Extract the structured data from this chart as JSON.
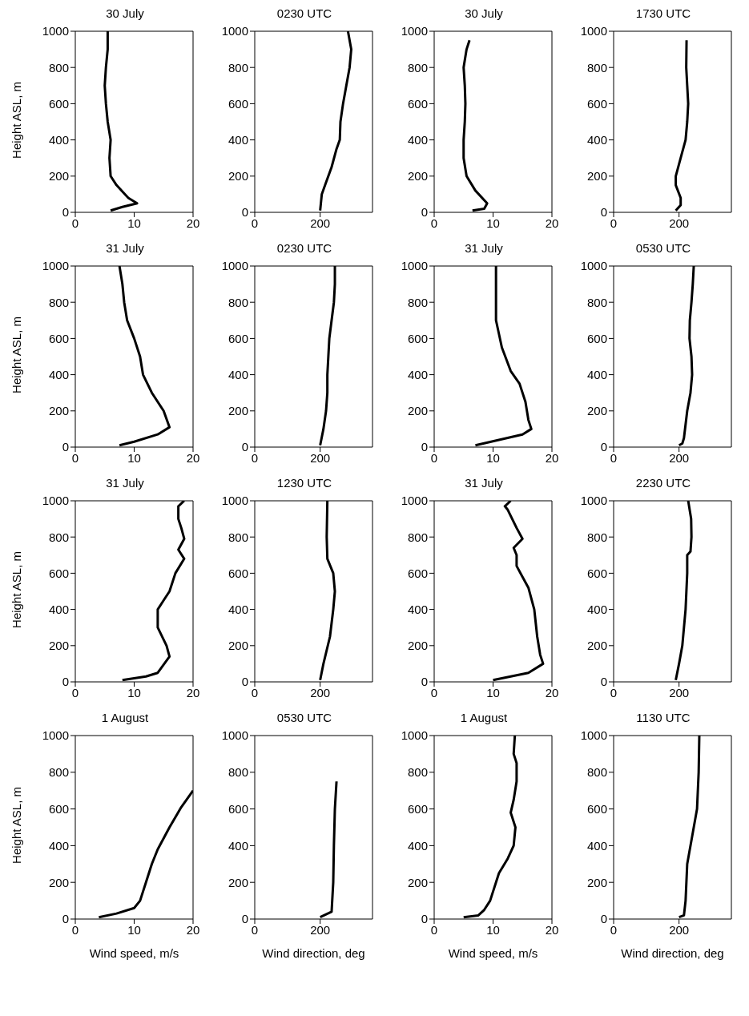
{
  "chart_data": [
    {
      "type": "line",
      "title": "30 July",
      "ylabel": "Height ASL, m",
      "color": "#000000",
      "xlim": [
        0,
        20
      ],
      "xticks": [
        0,
        10,
        20
      ],
      "ylim": [
        0,
        1000
      ],
      "yticks": [
        0,
        200,
        400,
        600,
        800,
        1000
      ],
      "x": [
        6,
        8,
        10.5,
        9,
        7,
        6,
        5.8,
        6,
        5.5,
        5.2,
        5,
        5.2,
        5.5,
        5.5
      ],
      "values": [
        10,
        30,
        50,
        80,
        150,
        200,
        300,
        400,
        500,
        600,
        700,
        800,
        900,
        1000
      ]
    },
    {
      "type": "line",
      "title": "0230 UTC",
      "color": "#000000",
      "xlim": [
        0,
        360
      ],
      "xticks": [
        0,
        200
      ],
      "ylim": [
        0,
        1000
      ],
      "yticks": [
        0,
        200,
        400,
        600,
        800,
        1000
      ],
      "x": [
        200,
        205,
        215,
        235,
        250,
        260,
        262,
        270,
        280,
        290,
        295,
        285
      ],
      "values": [
        10,
        100,
        150,
        250,
        350,
        400,
        500,
        600,
        700,
        800,
        900,
        1000
      ]
    },
    {
      "type": "line",
      "title": "30 July",
      "color": "#000000",
      "xlim": [
        0,
        20
      ],
      "xticks": [
        0,
        10,
        20
      ],
      "ylim": [
        0,
        1000
      ],
      "yticks": [
        0,
        200,
        400,
        600,
        800,
        1000
      ],
      "x": [
        6.5,
        8.5,
        9,
        7,
        5.5,
        5,
        5,
        5.2,
        5.3,
        5.2,
        5,
        5.5,
        6
      ],
      "values": [
        10,
        20,
        50,
        120,
        200,
        300,
        400,
        500,
        600,
        700,
        800,
        900,
        950
      ]
    },
    {
      "type": "line",
      "title": "1730 UTC",
      "color": "#000000",
      "xlim": [
        0,
        360
      ],
      "xticks": [
        0,
        200
      ],
      "ylim": [
        0,
        1000
      ],
      "yticks": [
        0,
        200,
        400,
        600,
        800,
        1000
      ],
      "x": [
        190,
        205,
        205,
        190,
        190,
        205,
        220,
        225,
        228,
        225,
        222,
        223
      ],
      "values": [
        10,
        40,
        80,
        150,
        200,
        300,
        400,
        500,
        600,
        700,
        800,
        950
      ]
    },
    {
      "type": "line",
      "title": "31 July",
      "ylabel": "Height ASL, m",
      "color": "#000000",
      "xlim": [
        0,
        20
      ],
      "xticks": [
        0,
        10,
        20
      ],
      "ylim": [
        0,
        1000
      ],
      "yticks": [
        0,
        200,
        400,
        600,
        800,
        1000
      ],
      "x": [
        7.5,
        10,
        14,
        16,
        15,
        13,
        11.5,
        11,
        10,
        8.8,
        8.3,
        8,
        7.5
      ],
      "values": [
        10,
        30,
        70,
        110,
        200,
        300,
        400,
        500,
        600,
        700,
        800,
        900,
        1000
      ]
    },
    {
      "type": "line",
      "title": "0230 UTC",
      "color": "#000000",
      "xlim": [
        0,
        360
      ],
      "xticks": [
        0,
        200
      ],
      "ylim": [
        0,
        1000
      ],
      "yticks": [
        0,
        200,
        400,
        600,
        800,
        1000
      ],
      "x": [
        200,
        210,
        218,
        222,
        222,
        225,
        228,
        235,
        242,
        245,
        245
      ],
      "values": [
        10,
        100,
        200,
        300,
        400,
        500,
        600,
        700,
        800,
        900,
        1000
      ]
    },
    {
      "type": "line",
      "title": "31 July",
      "color": "#000000",
      "xlim": [
        0,
        20
      ],
      "xticks": [
        0,
        10,
        20
      ],
      "ylim": [
        0,
        1000
      ],
      "yticks": [
        0,
        200,
        400,
        600,
        800,
        1000
      ],
      "x": [
        7,
        11,
        15,
        16.5,
        16,
        15.5,
        14.5,
        13,
        11.5,
        10.5,
        10.5,
        10.5
      ],
      "values": [
        10,
        40,
        70,
        100,
        150,
        250,
        350,
        420,
        550,
        700,
        800,
        1000
      ]
    },
    {
      "type": "line",
      "title": "0530 UTC",
      "color": "#000000",
      "xlim": [
        0,
        360
      ],
      "xticks": [
        0,
        200
      ],
      "ylim": [
        0,
        1000
      ],
      "yticks": [
        0,
        200,
        400,
        600,
        800,
        1000
      ],
      "x": [
        200,
        210,
        215,
        225,
        235,
        240,
        238,
        232,
        233,
        238,
        242,
        245
      ],
      "values": [
        10,
        20,
        50,
        200,
        300,
        400,
        500,
        600,
        700,
        800,
        900,
        1000
      ]
    },
    {
      "type": "line",
      "title": "31 July",
      "ylabel": "Height ASL, m",
      "color": "#000000",
      "xlim": [
        0,
        20
      ],
      "xticks": [
        0,
        10,
        20
      ],
      "ylim": [
        0,
        1000
      ],
      "yticks": [
        0,
        200,
        400,
        600,
        800,
        1000
      ],
      "x": [
        8,
        12,
        14,
        16,
        15.5,
        14,
        14,
        15,
        16,
        17,
        18.5,
        17.5,
        18.5,
        18,
        17.5,
        17.5,
        18.5
      ],
      "values": [
        10,
        30,
        50,
        140,
        200,
        300,
        400,
        450,
        500,
        600,
        680,
        730,
        790,
        850,
        900,
        970,
        1000
      ]
    },
    {
      "type": "line",
      "title": "1230 UTC",
      "color": "#000000",
      "xlim": [
        0,
        360
      ],
      "xticks": [
        0,
        200
      ],
      "ylim": [
        0,
        1000
      ],
      "yticks": [
        0,
        200,
        400,
        600,
        800,
        1000
      ],
      "x": [
        200,
        210,
        230,
        240,
        245,
        240,
        222,
        220,
        222
      ],
      "values": [
        10,
        100,
        250,
        400,
        500,
        600,
        680,
        800,
        1000
      ]
    },
    {
      "type": "line",
      "title": "31 July",
      "color": "#000000",
      "xlim": [
        0,
        20
      ],
      "xticks": [
        0,
        10,
        20
      ],
      "ylim": [
        0,
        1000
      ],
      "yticks": [
        0,
        200,
        400,
        600,
        800,
        1000
      ],
      "x": [
        10,
        13,
        16,
        18.5,
        18,
        17.5,
        17,
        16,
        15,
        14,
        14,
        13.5,
        15,
        14,
        12.5,
        12,
        13
      ],
      "values": [
        10,
        30,
        50,
        100,
        150,
        250,
        400,
        520,
        580,
        640,
        700,
        740,
        790,
        850,
        950,
        970,
        1000
      ]
    },
    {
      "type": "line",
      "title": "2230 UTC",
      "color": "#000000",
      "xlim": [
        0,
        360
      ],
      "xticks": [
        0,
        200
      ],
      "ylim": [
        0,
        1000
      ],
      "yticks": [
        0,
        200,
        400,
        600,
        800,
        1000
      ],
      "x": [
        190,
        200,
        210,
        220,
        225,
        225,
        235,
        238,
        237,
        228
      ],
      "values": [
        10,
        100,
        200,
        400,
        600,
        700,
        720,
        800,
        900,
        1000
      ]
    },
    {
      "type": "line",
      "title": "1 August",
      "ylabel": "Height ASL, m",
      "xlabel": "Wind speed, m/s",
      "color": "#000000",
      "xlim": [
        0,
        20
      ],
      "xticks": [
        0,
        10,
        20
      ],
      "ylim": [
        0,
        1000
      ],
      "yticks": [
        0,
        200,
        400,
        600,
        800,
        1000
      ],
      "x": [
        4,
        7,
        10,
        11,
        12,
        13,
        14,
        16,
        18,
        20
      ],
      "values": [
        10,
        30,
        60,
        100,
        200,
        300,
        380,
        500,
        610,
        700
      ]
    },
    {
      "type": "line",
      "title": "0530 UTC",
      "xlabel": "Wind direction, deg",
      "color": "#000000",
      "xlim": [
        0,
        360
      ],
      "xticks": [
        0,
        200
      ],
      "ylim": [
        0,
        1000
      ],
      "yticks": [
        0,
        200,
        400,
        600,
        800,
        1000
      ],
      "x": [
        200,
        235,
        240,
        242,
        245,
        250
      ],
      "values": [
        10,
        40,
        200,
        400,
        600,
        750
      ]
    },
    {
      "type": "line",
      "title": "1 August",
      "xlabel": "Wind speed, m/s",
      "color": "#000000",
      "xlim": [
        0,
        20
      ],
      "xticks": [
        0,
        10,
        20
      ],
      "ylim": [
        0,
        1000
      ],
      "yticks": [
        0,
        200,
        400,
        600,
        800,
        1000
      ],
      "x": [
        5,
        7.5,
        8.5,
        9.5,
        11,
        12.5,
        13.5,
        13.8,
        13,
        13.5,
        14,
        14,
        13.5,
        13.7
      ],
      "values": [
        10,
        20,
        50,
        100,
        250,
        330,
        400,
        500,
        580,
        650,
        750,
        850,
        900,
        1000
      ]
    },
    {
      "type": "line",
      "title": "1130 UTC",
      "xlabel": "Wind direction, deg",
      "color": "#000000",
      "xlim": [
        0,
        360
      ],
      "xticks": [
        0,
        200
      ],
      "ylim": [
        0,
        1000
      ],
      "yticks": [
        0,
        200,
        400,
        600,
        800,
        1000
      ],
      "x": [
        200,
        215,
        220,
        225,
        240,
        255,
        260,
        262
      ],
      "values": [
        10,
        20,
        100,
        300,
        450,
        600,
        800,
        1000
      ]
    }
  ]
}
